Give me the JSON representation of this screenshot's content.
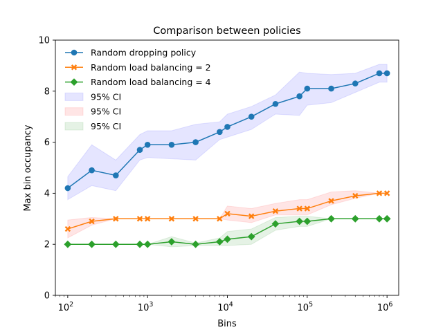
{
  "chart_data": {
    "type": "line",
    "title": "Comparison between policies",
    "xlabel": "Bins",
    "ylabel": "Max bin occupancy",
    "xscale": "log",
    "xlim": [
      70,
      1400000
    ],
    "ylim": [
      0,
      10
    ],
    "yticks": [
      "0",
      "2",
      "4",
      "6",
      "8",
      "10"
    ],
    "xticks": [
      {
        "value": 100,
        "base": "10",
        "exp": "2"
      },
      {
        "value": 1000,
        "base": "10",
        "exp": "3"
      },
      {
        "value": 10000,
        "base": "10",
        "exp": "4"
      },
      {
        "value": 100000,
        "base": "10",
        "exp": "5"
      },
      {
        "value": 1000000,
        "base": "10",
        "exp": "6"
      }
    ],
    "x": [
      100,
      200,
      400,
      800,
      1000,
      2000,
      4000,
      8000,
      10000,
      20000,
      40000,
      80000,
      100000,
      200000,
      400000,
      800000,
      1000000
    ],
    "grid": false,
    "legend_position": "top-left",
    "series": [
      {
        "name": "Random dropping policy",
        "color": "#1f77b4",
        "marker": "circle",
        "values": [
          4.2,
          4.9,
          4.7,
          5.7,
          5.9,
          5.9,
          6.0,
          6.4,
          6.6,
          7.0,
          7.5,
          7.8,
          8.1,
          8.1,
          8.3,
          8.7,
          8.7
        ],
        "ci_lower": [
          3.75,
          4.3,
          4.1,
          5.3,
          5.4,
          5.35,
          5.3,
          6.1,
          6.2,
          6.5,
          7.1,
          7.05,
          7.45,
          7.55,
          7.95,
          8.35,
          8.35
        ],
        "ci_upper": [
          4.65,
          5.9,
          5.3,
          6.3,
          6.45,
          6.45,
          6.7,
          6.8,
          7.1,
          7.4,
          7.85,
          8.75,
          8.7,
          8.65,
          8.7,
          9.05,
          9.05
        ]
      },
      {
        "name": "Random load balancing = 2",
        "color": "#ff7f0e",
        "marker": "x",
        "values": [
          2.6,
          2.9,
          3.0,
          3.0,
          3.0,
          3.0,
          3.0,
          3.0,
          3.2,
          3.1,
          3.3,
          3.4,
          3.4,
          3.7,
          3.9,
          4.0,
          4.0
        ],
        "ci_lower": [
          2.25,
          2.75,
          3.0,
          3.0,
          3.0,
          3.0,
          3.0,
          3.0,
          2.95,
          2.85,
          3.15,
          3.15,
          3.15,
          3.55,
          3.8,
          4.0,
          4.0
        ],
        "ci_upper": [
          2.95,
          3.05,
          3.0,
          3.0,
          3.0,
          3.0,
          3.0,
          3.0,
          3.5,
          3.4,
          3.6,
          3.75,
          3.75,
          4.05,
          4.1,
          4.0,
          4.0
        ]
      },
      {
        "name": "Random load balancing = 4",
        "color": "#2ca02c",
        "marker": "diamond",
        "values": [
          2.0,
          2.0,
          2.0,
          2.0,
          2.0,
          2.1,
          2.0,
          2.1,
          2.2,
          2.3,
          2.8,
          2.9,
          2.9,
          3.0,
          3.0,
          3.0,
          3.0
        ],
        "ci_lower": [
          2.0,
          2.0,
          2.0,
          2.0,
          2.0,
          1.9,
          1.95,
          1.95,
          1.95,
          2.0,
          2.55,
          2.7,
          2.7,
          3.0,
          3.0,
          3.0,
          3.0
        ],
        "ci_upper": [
          2.0,
          2.0,
          2.0,
          2.0,
          2.0,
          2.3,
          2.05,
          2.25,
          2.5,
          2.6,
          3.05,
          3.1,
          3.1,
          3.0,
          3.0,
          3.0,
          3.0
        ]
      }
    ],
    "ci_labels": [
      "95% CI",
      "95% CI",
      "95% CI"
    ],
    "ci_colors": [
      "#0000ff",
      "#ff0000",
      "#008000"
    ]
  }
}
